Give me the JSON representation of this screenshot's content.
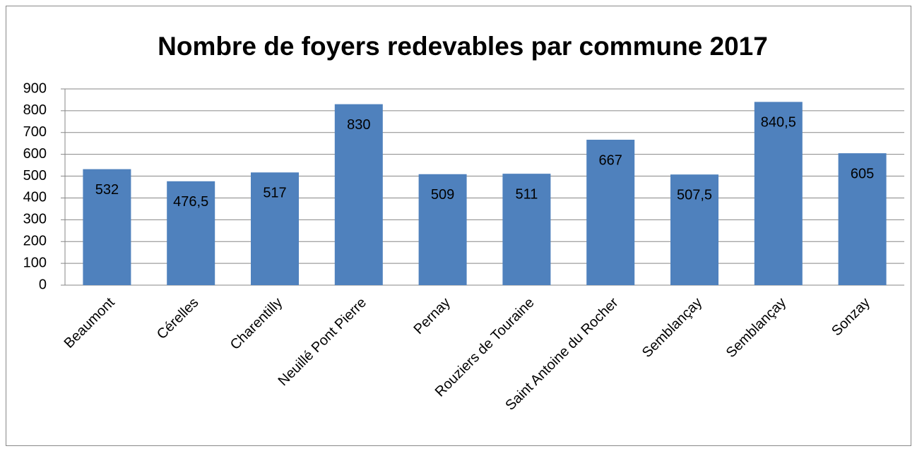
{
  "chart_data": {
    "type": "bar",
    "title": "Nombre de foyers redevables par commune 2017",
    "categories": [
      "Beaumont",
      "Cérelles",
      "Charentilly",
      "Neuillé Pont Pierre",
      "Pernay",
      "Rouziers de Touraine",
      "Saint Antoine du Rocher",
      "Semblançay",
      "Semblançay",
      "Sonzay"
    ],
    "values": [
      532,
      476.5,
      517,
      830,
      509,
      511,
      667,
      507.5,
      840.5,
      605
    ],
    "value_labels": [
      "532",
      "476,5",
      "517",
      "830",
      "509",
      "511",
      "667",
      "507,5",
      "840,5",
      "605"
    ],
    "color": "#4f81bd",
    "ylim": [
      0,
      900
    ],
    "yticks": [
      0,
      100,
      200,
      300,
      400,
      500,
      600,
      700,
      800,
      900
    ],
    "grid": true
  }
}
